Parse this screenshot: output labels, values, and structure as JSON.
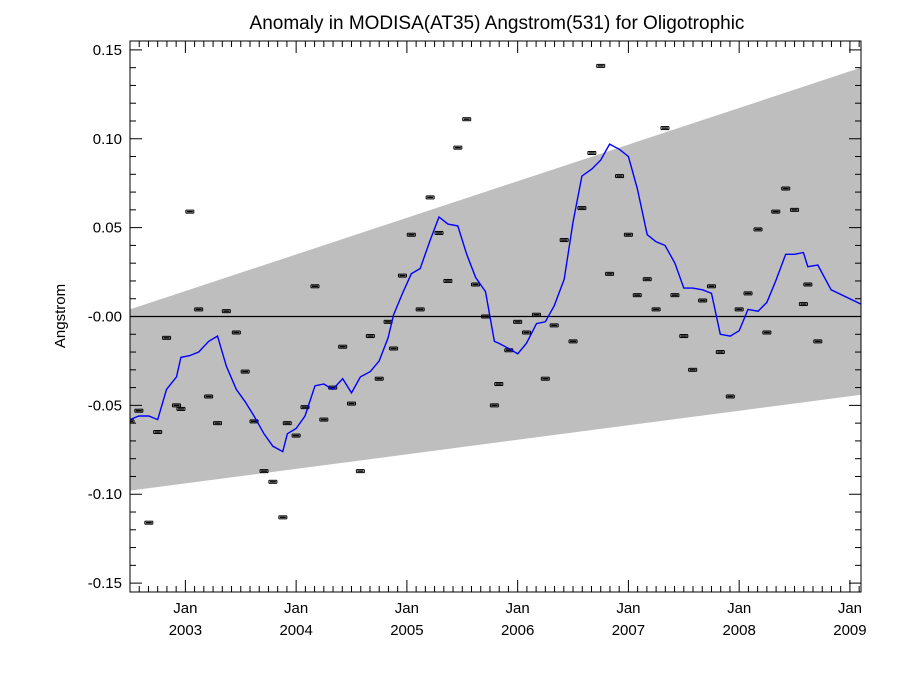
{
  "chart_data": {
    "type": "scatter",
    "title": "Anomaly in MODISA(AT35) Angstrom(531) for Oligotrophic",
    "xlabel": "",
    "ylabel": "Angstrom",
    "x_range_years": [
      2002.5,
      2009.1
    ],
    "ylim": [
      -0.155,
      0.155
    ],
    "y_ticks": [
      0.15,
      0.1,
      0.05,
      0.0,
      -0.05,
      -0.1,
      -0.15
    ],
    "y_tick_labels": [
      "0.15",
      "0.10",
      "0.05",
      "-0.00",
      "-0.05",
      "-0.10",
      "-0.15"
    ],
    "x_ticks": [
      {
        "x": 2003.0,
        "month": "Jan",
        "year": "2003"
      },
      {
        "x": 2004.0,
        "month": "Jan",
        "year": "2004"
      },
      {
        "x": 2005.0,
        "month": "Jan",
        "year": "2005"
      },
      {
        "x": 2006.0,
        "month": "Jan",
        "year": "2006"
      },
      {
        "x": 2007.0,
        "month": "Jan",
        "year": "2007"
      },
      {
        "x": 2008.0,
        "month": "Jan",
        "year": "2008"
      },
      {
        "x": 2009.0,
        "month": "Jan",
        "year": "2009"
      }
    ],
    "zero_line": 0.0,
    "band": {
      "lower": [
        [
          2002.5,
          -0.098
        ],
        [
          2009.1,
          -0.044
        ]
      ],
      "upper": [
        [
          2002.5,
          0.004
        ],
        [
          2009.1,
          0.14
        ]
      ],
      "color": "#bebebe"
    },
    "series": [
      {
        "kind": "points",
        "color": "#000000",
        "points": [
          [
            2002.5,
            -0.059
          ],
          [
            2002.58,
            -0.053
          ],
          [
            2002.67,
            -0.116
          ],
          [
            2002.75,
            -0.065
          ],
          [
            2002.83,
            -0.012
          ],
          [
            2002.92,
            -0.05
          ],
          [
            2002.96,
            -0.052
          ],
          [
            2003.04,
            0.059
          ],
          [
            2003.12,
            0.004
          ],
          [
            2003.21,
            -0.045
          ],
          [
            2003.29,
            -0.06
          ],
          [
            2003.37,
            0.003
          ],
          [
            2003.46,
            -0.009
          ],
          [
            2003.54,
            -0.031
          ],
          [
            2003.62,
            -0.059
          ],
          [
            2003.71,
            -0.087
          ],
          [
            2003.79,
            -0.093
          ],
          [
            2003.88,
            -0.113
          ],
          [
            2003.92,
            -0.06
          ],
          [
            2004.0,
            -0.067
          ],
          [
            2004.08,
            -0.051
          ],
          [
            2004.17,
            0.017
          ],
          [
            2004.25,
            -0.058
          ],
          [
            2004.33,
            -0.04
          ],
          [
            2004.42,
            -0.017
          ],
          [
            2004.5,
            -0.049
          ],
          [
            2004.58,
            -0.087
          ],
          [
            2004.67,
            -0.011
          ],
          [
            2004.75,
            -0.035
          ],
          [
            2004.83,
            -0.003
          ],
          [
            2004.88,
            -0.018
          ],
          [
            2004.96,
            0.023
          ],
          [
            2005.04,
            0.046
          ],
          [
            2005.12,
            0.004
          ],
          [
            2005.21,
            0.067
          ],
          [
            2005.29,
            0.047
          ],
          [
            2005.37,
            0.02
          ],
          [
            2005.46,
            0.095
          ],
          [
            2005.54,
            0.111
          ],
          [
            2005.62,
            0.018
          ],
          [
            2005.71,
            0.0
          ],
          [
            2005.79,
            -0.05
          ],
          [
            2005.83,
            -0.038
          ],
          [
            2005.92,
            -0.019
          ],
          [
            2006.0,
            -0.003
          ],
          [
            2006.08,
            -0.009
          ],
          [
            2006.17,
            0.001
          ],
          [
            2006.25,
            -0.035
          ],
          [
            2006.33,
            -0.005
          ],
          [
            2006.42,
            0.043
          ],
          [
            2006.5,
            -0.014
          ],
          [
            2006.58,
            0.061
          ],
          [
            2006.67,
            0.092
          ],
          [
            2006.75,
            0.141
          ],
          [
            2006.83,
            0.024
          ],
          [
            2006.92,
            0.079
          ],
          [
            2007.0,
            0.046
          ],
          [
            2007.08,
            0.012
          ],
          [
            2007.17,
            0.021
          ],
          [
            2007.25,
            0.004
          ],
          [
            2007.33,
            0.106
          ],
          [
            2007.42,
            0.012
          ],
          [
            2007.5,
            -0.011
          ],
          [
            2007.58,
            -0.03
          ],
          [
            2007.67,
            0.009
          ],
          [
            2007.75,
            0.017
          ],
          [
            2007.83,
            -0.02
          ],
          [
            2007.92,
            -0.045
          ],
          [
            2008.0,
            0.004
          ],
          [
            2008.08,
            0.013
          ],
          [
            2008.17,
            0.049
          ],
          [
            2008.25,
            -0.009
          ],
          [
            2008.33,
            0.059
          ],
          [
            2008.42,
            0.072
          ],
          [
            2008.5,
            0.06
          ],
          [
            2008.58,
            0.007
          ],
          [
            2008.62,
            0.018
          ],
          [
            2008.71,
            -0.014
          ]
        ]
      },
      {
        "kind": "line",
        "color": "#0000ff",
        "points": [
          [
            2002.5,
            -0.058
          ],
          [
            2002.58,
            -0.056
          ],
          [
            2002.67,
            -0.056
          ],
          [
            2002.75,
            -0.058
          ],
          [
            2002.83,
            -0.041
          ],
          [
            2002.92,
            -0.034
          ],
          [
            2002.96,
            -0.023
          ],
          [
            2003.04,
            -0.022
          ],
          [
            2003.12,
            -0.02
          ],
          [
            2003.21,
            -0.014
          ],
          [
            2003.29,
            -0.011
          ],
          [
            2003.37,
            -0.028
          ],
          [
            2003.46,
            -0.041
          ],
          [
            2003.54,
            -0.048
          ],
          [
            2003.62,
            -0.056
          ],
          [
            2003.71,
            -0.066
          ],
          [
            2003.79,
            -0.073
          ],
          [
            2003.88,
            -0.076
          ],
          [
            2003.92,
            -0.066
          ],
          [
            2004.0,
            -0.063
          ],
          [
            2004.08,
            -0.056
          ],
          [
            2004.17,
            -0.039
          ],
          [
            2004.25,
            -0.038
          ],
          [
            2004.33,
            -0.041
          ],
          [
            2004.42,
            -0.035
          ],
          [
            2004.5,
            -0.043
          ],
          [
            2004.58,
            -0.034
          ],
          [
            2004.67,
            -0.031
          ],
          [
            2004.75,
            -0.025
          ],
          [
            2004.83,
            -0.012
          ],
          [
            2004.88,
            0.001
          ],
          [
            2004.96,
            0.013
          ],
          [
            2005.04,
            0.024
          ],
          [
            2005.12,
            0.027
          ],
          [
            2005.21,
            0.043
          ],
          [
            2005.29,
            0.056
          ],
          [
            2005.37,
            0.052
          ],
          [
            2005.46,
            0.051
          ],
          [
            2005.54,
            0.035
          ],
          [
            2005.62,
            0.022
          ],
          [
            2005.71,
            0.014
          ],
          [
            2005.79,
            -0.014
          ],
          [
            2005.83,
            -0.015
          ],
          [
            2005.92,
            -0.018
          ],
          [
            2006.0,
            -0.021
          ],
          [
            2006.08,
            -0.015
          ],
          [
            2006.17,
            -0.004
          ],
          [
            2006.25,
            -0.003
          ],
          [
            2006.33,
            0.006
          ],
          [
            2006.42,
            0.021
          ],
          [
            2006.5,
            0.053
          ],
          [
            2006.58,
            0.079
          ],
          [
            2006.67,
            0.083
          ],
          [
            2006.75,
            0.088
          ],
          [
            2006.83,
            0.097
          ],
          [
            2006.92,
            0.094
          ],
          [
            2007.0,
            0.09
          ],
          [
            2007.08,
            0.072
          ],
          [
            2007.17,
            0.046
          ],
          [
            2007.25,
            0.042
          ],
          [
            2007.33,
            0.04
          ],
          [
            2007.42,
            0.03
          ],
          [
            2007.5,
            0.016
          ],
          [
            2007.58,
            0.016
          ],
          [
            2007.67,
            0.015
          ],
          [
            2007.75,
            0.013
          ],
          [
            2007.83,
            -0.01
          ],
          [
            2007.92,
            -0.011
          ],
          [
            2008.0,
            -0.008
          ],
          [
            2008.08,
            0.004
          ],
          [
            2008.17,
            0.003
          ],
          [
            2008.25,
            0.008
          ],
          [
            2008.33,
            0.02
          ],
          [
            2008.42,
            0.035
          ],
          [
            2008.5,
            0.035
          ],
          [
            2008.58,
            0.036
          ],
          [
            2008.62,
            0.028
          ],
          [
            2008.71,
            0.029
          ],
          [
            2008.83,
            0.015
          ],
          [
            2009.1,
            0.007
          ]
        ]
      }
    ]
  }
}
